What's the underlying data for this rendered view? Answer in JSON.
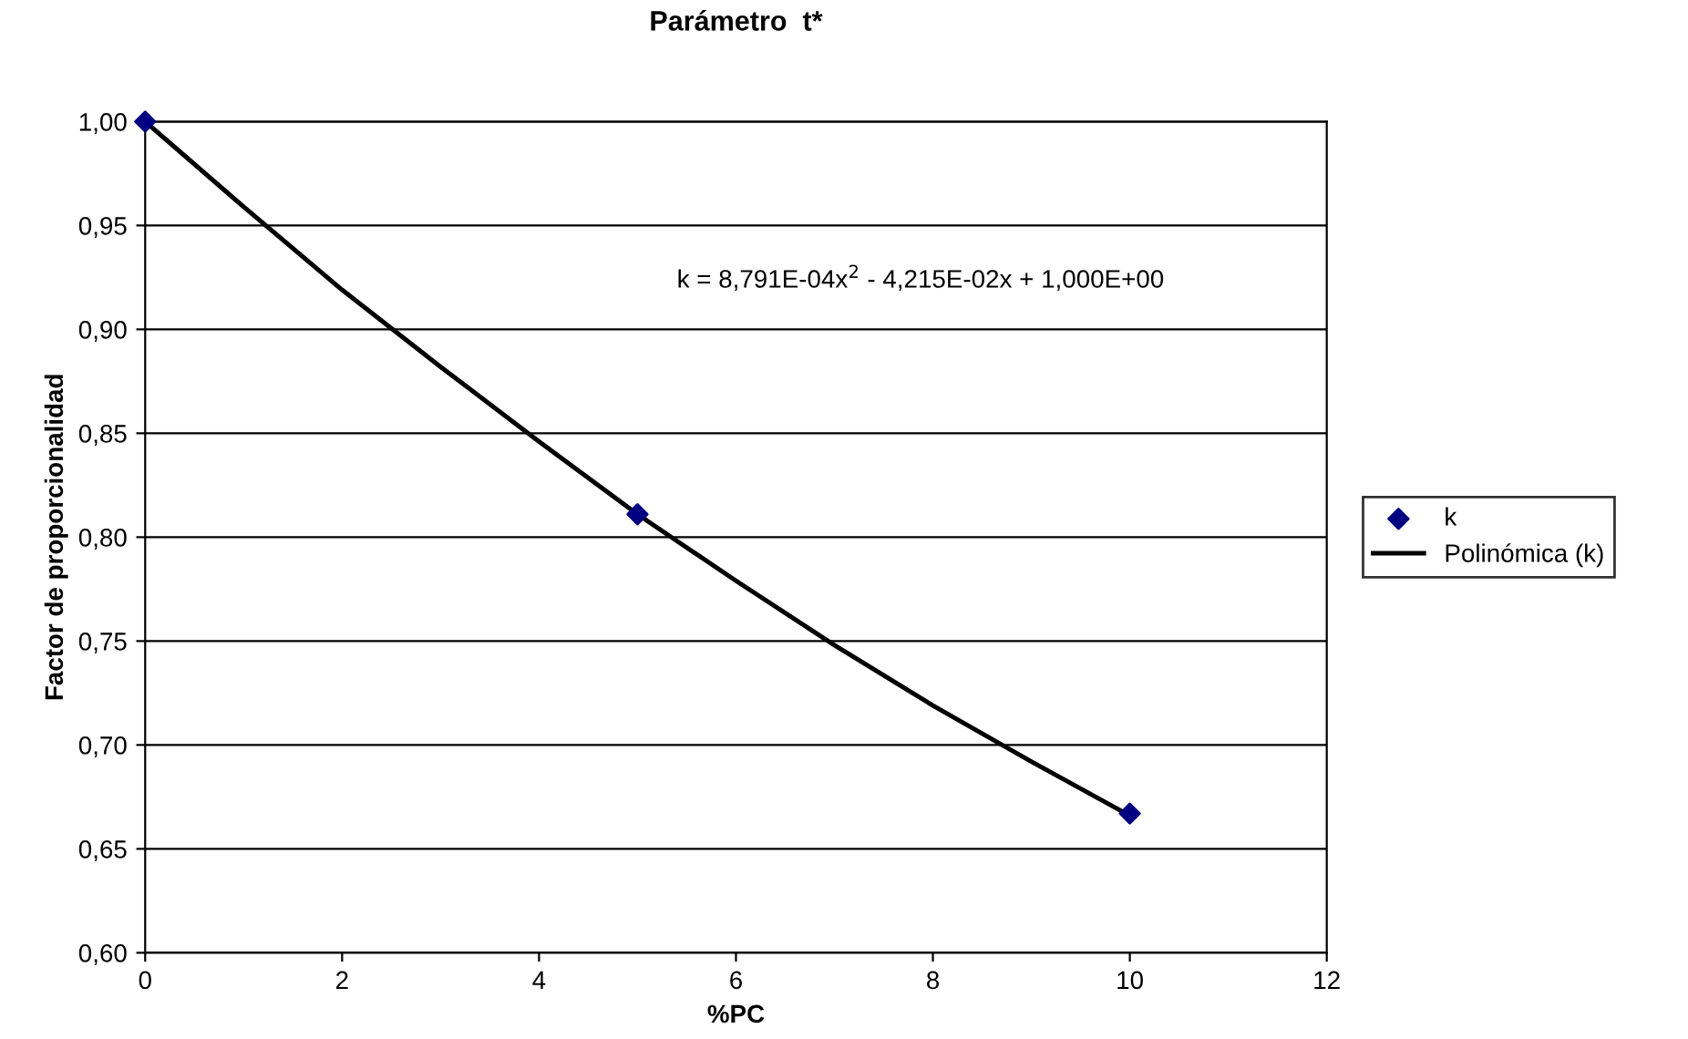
{
  "chart_data": {
    "type": "scatter",
    "title": "Parámetro  t*",
    "xlabel": "%PC",
    "ylabel": "Factor de proporcionalidad",
    "annotations": [
      "k = 8,791E-04x$^{2}$ - 4,215E-02x + 1,000E+00"
    ],
    "series": [
      {
        "name": "k",
        "color": "#000080",
        "marker": "diamond",
        "x": [
          0,
          5,
          10
        ],
        "values": [
          1.0,
          0.811,
          0.667
        ]
      },
      {
        "name": "Polinómica (k)",
        "type": "line",
        "color": "#000000",
        "marker": "none",
        "line_style": "solid",
        "x": [
          0,
          1,
          2,
          3,
          4,
          5,
          6,
          7,
          8,
          9,
          10
        ],
        "values": [
          1.0,
          0.959,
          0.919,
          0.882,
          0.846,
          0.811,
          0.779,
          0.748,
          0.719,
          0.692,
          0.666
        ]
      }
    ],
    "xlim": [
      0,
      12
    ],
    "xticks": [
      0,
      2,
      4,
      6,
      8,
      10,
      12
    ],
    "ylim": [
      0.6,
      1.0
    ],
    "yticks": [
      {
        "value": 0.6,
        "label": "0,60"
      },
      {
        "value": 0.65,
        "label": "0,65"
      },
      {
        "value": 0.7,
        "label": "0,70"
      },
      {
        "value": 0.75,
        "label": "0,75"
      },
      {
        "value": 0.8,
        "label": "0,80"
      },
      {
        "value": 0.85,
        "label": "0,85"
      },
      {
        "value": 0.9,
        "label": "0,90"
      },
      {
        "value": 0.95,
        "label": "0,95"
      },
      {
        "value": 1.0,
        "label": "1,00"
      }
    ],
    "grid": "y",
    "legend": "right"
  }
}
